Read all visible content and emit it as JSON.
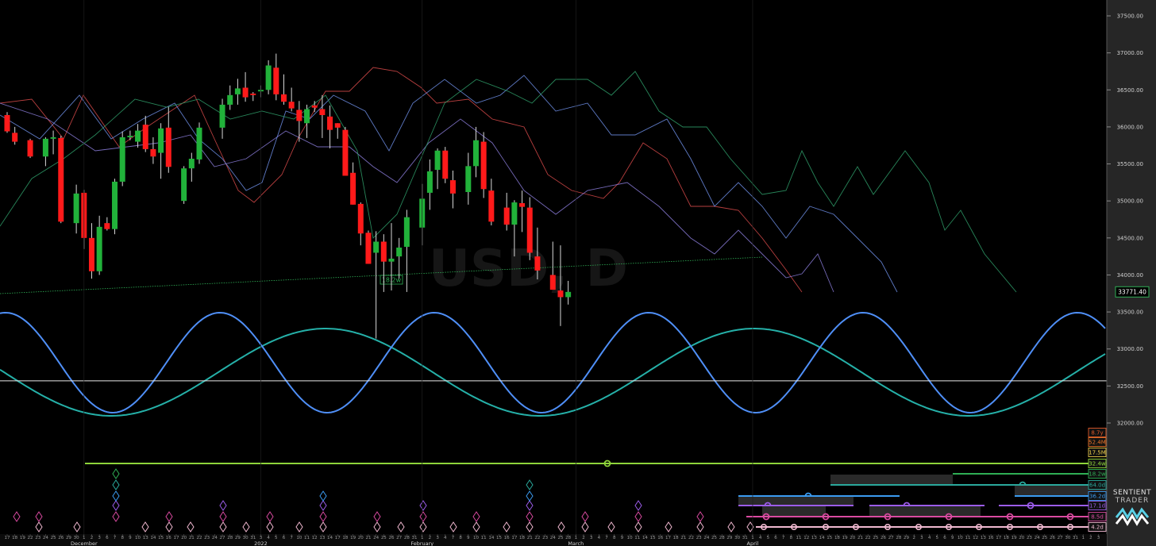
{
  "chart_data": {
    "type": "candlestick",
    "instrument_watermark": "USD, D",
    "ylim": [
      31600,
      37800
    ],
    "y_ticks": [
      32000,
      32500,
      33000,
      33500,
      34000,
      34500,
      35000,
      35500,
      36000,
      36500,
      37000,
      37500
    ],
    "y_tick_labels": [
      "32000.00",
      "32500.00",
      "33000.00",
      "33500.00",
      "34000.00",
      "34500.00",
      "35000.00",
      "35500.00",
      "36000.00",
      "36500.00",
      "37000.00",
      "37500.00"
    ],
    "last_price": "33771.40",
    "trendline_label": "18.2w",
    "horizontal_line": 32570,
    "x_axis": {
      "days": [
        "17",
        "18",
        "19",
        "22",
        "23",
        "24",
        "25",
        "26",
        "29",
        "30",
        "1",
        "2",
        "3",
        "6",
        "7",
        "8",
        "9",
        "10",
        "13",
        "14",
        "15",
        "16",
        "17",
        "20",
        "21",
        "22",
        "23",
        "24",
        "27",
        "28",
        "29",
        "30",
        "31",
        "3",
        "4",
        "5",
        "6",
        "7",
        "10",
        "11",
        "12",
        "13",
        "14",
        "17",
        "18",
        "19",
        "20",
        "21",
        "24",
        "25",
        "26",
        "27",
        "28",
        "31",
        "1",
        "2",
        "3",
        "4",
        "7",
        "8",
        "9",
        "10",
        "11",
        "14",
        "15",
        "16",
        "17",
        "18",
        "21",
        "22",
        "23",
        "24",
        "25",
        "28",
        "1",
        "2",
        "3",
        "4",
        "7",
        "8",
        "9",
        "10",
        "11",
        "14",
        "15",
        "16",
        "17",
        "18",
        "21",
        "22",
        "23",
        "24",
        "25",
        "28",
        "29",
        "30",
        "31",
        "1",
        "4",
        "5",
        "6",
        "7",
        "8",
        "11",
        "12",
        "13",
        "14",
        "15",
        "18",
        "19",
        "20",
        "21",
        "22",
        "25",
        "26",
        "27",
        "28",
        "29",
        "2",
        "3",
        "4",
        "5",
        "6",
        "9",
        "10",
        "11",
        "12",
        "13",
        "16",
        "17",
        "18",
        "19",
        "20",
        "23",
        "24",
        "25",
        "26",
        "27",
        "30",
        "31",
        "1",
        "2",
        "3",
        "6",
        "7",
        "8",
        "9"
      ],
      "months": [
        {
          "label": "December",
          "index": 10
        },
        {
          "label": "2022",
          "index": 33
        },
        {
          "label": "February",
          "index": 54
        },
        {
          "label": "March",
          "index": 74
        },
        {
          "label": "April",
          "index": 97
        }
      ]
    },
    "candles": [
      [
        0,
        36160,
        36200,
        35920,
        35940
      ],
      [
        1,
        35920,
        36000,
        35760,
        35800
      ],
      [
        3,
        35820,
        35840,
        35580,
        35600
      ],
      [
        5,
        35600,
        35860,
        35470,
        35840
      ],
      [
        6,
        35840,
        35950,
        35630,
        35860
      ],
      [
        7,
        35850,
        35880,
        34700,
        34720
      ],
      [
        9,
        34700,
        35220,
        34560,
        35100
      ],
      [
        10,
        35110,
        35150,
        34350,
        34500
      ],
      [
        11,
        34500,
        34700,
        33950,
        34050
      ],
      [
        12,
        34050,
        34800,
        34000,
        34650
      ],
      [
        13,
        34700,
        34780,
        34600,
        34620
      ],
      [
        14,
        34620,
        35300,
        34550,
        35260
      ],
      [
        15,
        35260,
        35940,
        35200,
        35860
      ],
      [
        16,
        35860,
        35950,
        35820,
        35880
      ],
      [
        17,
        35800,
        36040,
        35720,
        35950
      ],
      [
        18,
        36030,
        36150,
        35660,
        35700
      ],
      [
        19,
        35700,
        35860,
        35500,
        35600
      ],
      [
        20,
        35650,
        36050,
        35300,
        35980
      ],
      [
        21,
        35990,
        36270,
        35380,
        35460
      ],
      [
        23,
        35000,
        35470,
        34960,
        35440
      ],
      [
        24,
        35440,
        35650,
        35260,
        35570
      ],
      [
        25,
        35560,
        36060,
        35500,
        35990
      ],
      [
        28,
        35990,
        36380,
        35840,
        36300
      ],
      [
        29,
        36300,
        36560,
        36230,
        36430
      ],
      [
        30,
        36440,
        36650,
        36300,
        36520
      ],
      [
        31,
        36530,
        36740,
        36340,
        36400
      ],
      [
        32,
        36450,
        36470,
        36350,
        36430
      ],
      [
        33,
        36480,
        36560,
        36400,
        36500
      ],
      [
        34,
        36500,
        36900,
        36440,
        36830
      ],
      [
        35,
        36800,
        36990,
        36360,
        36440
      ],
      [
        36,
        36440,
        36710,
        36300,
        36340
      ],
      [
        37,
        36340,
        36530,
        36210,
        36250
      ],
      [
        38,
        36230,
        36350,
        35800,
        36080
      ],
      [
        39,
        36050,
        36300,
        35850,
        36240
      ],
      [
        40,
        36290,
        36350,
        36200,
        36260
      ],
      [
        41,
        36240,
        36430,
        35850,
        36160
      ],
      [
        42,
        36140,
        36290,
        35710,
        35960
      ],
      [
        43,
        36050,
        36050,
        35840,
        35990
      ],
      [
        44,
        35960,
        36000,
        35400,
        35340
      ],
      [
        45,
        35380,
        35520,
        34950,
        34950
      ],
      [
        46,
        34960,
        34980,
        34400,
        34560
      ],
      [
        47,
        34570,
        34600,
        34150,
        34150
      ],
      [
        48,
        34300,
        34590,
        33140,
        34450
      ],
      [
        49,
        34450,
        34550,
        33770,
        34180
      ],
      [
        50,
        34180,
        34700,
        33790,
        34220
      ],
      [
        51,
        34250,
        34500,
        33950,
        34370
      ],
      [
        52,
        34380,
        34880,
        33770,
        34780
      ],
      [
        54,
        34640,
        35230,
        34400,
        35030
      ],
      [
        55,
        35110,
        35560,
        34880,
        35400
      ],
      [
        56,
        35420,
        35710,
        35160,
        35680
      ],
      [
        57,
        35680,
        35730,
        35240,
        35300
      ],
      [
        58,
        35280,
        35410,
        34900,
        35100
      ],
      [
        60,
        35120,
        35650,
        34950,
        35470
      ],
      [
        61,
        35470,
        36000,
        35320,
        35820
      ],
      [
        62,
        35800,
        35930,
        35040,
        35160
      ],
      [
        63,
        35140,
        35300,
        34670,
        34720
      ],
      [
        65,
        34910,
        35110,
        34600,
        34680
      ],
      [
        66,
        34680,
        35010,
        34250,
        34980
      ],
      [
        67,
        34970,
        35140,
        34580,
        34920
      ],
      [
        68,
        34910,
        35050,
        34200,
        34300
      ],
      [
        69,
        34250,
        34640,
        33940,
        34060
      ],
      [
        71,
        34000,
        34450,
        33850,
        33800
      ],
      [
        72,
        33790,
        34400,
        33310,
        33700
      ],
      [
        73,
        33700,
        33920,
        33600,
        33771
      ]
    ],
    "cycles": [
      {
        "name": "8.7y",
        "color": "#e25a2a"
      },
      {
        "name": "52.4M",
        "color": "#e8742a"
      },
      {
        "name": "17.5M",
        "color": "#e6c84a"
      },
      {
        "name": "32.4w",
        "color": "#8ed43a"
      },
      {
        "name": "18.2w",
        "color": "#2fae55"
      },
      {
        "name": "64.0d",
        "color": "#2aa89c"
      },
      {
        "name": "36.2d",
        "color": "#3b9bf0"
      },
      {
        "name": "17.1d",
        "color": "#9b5ce8"
      },
      {
        "name": "8.5d",
        "color": "#d94aa0"
      },
      {
        "name": "4.2d",
        "color": "#f0b8d0"
      }
    ],
    "colors": {
      "bull": "#21b23a",
      "bear": "#ff1a1a",
      "background": "#000000",
      "axis_panel": "#262626",
      "last_price_border": "#2fae55"
    }
  },
  "logo": {
    "line1": "SENTIENT",
    "line2": "TRADER"
  }
}
